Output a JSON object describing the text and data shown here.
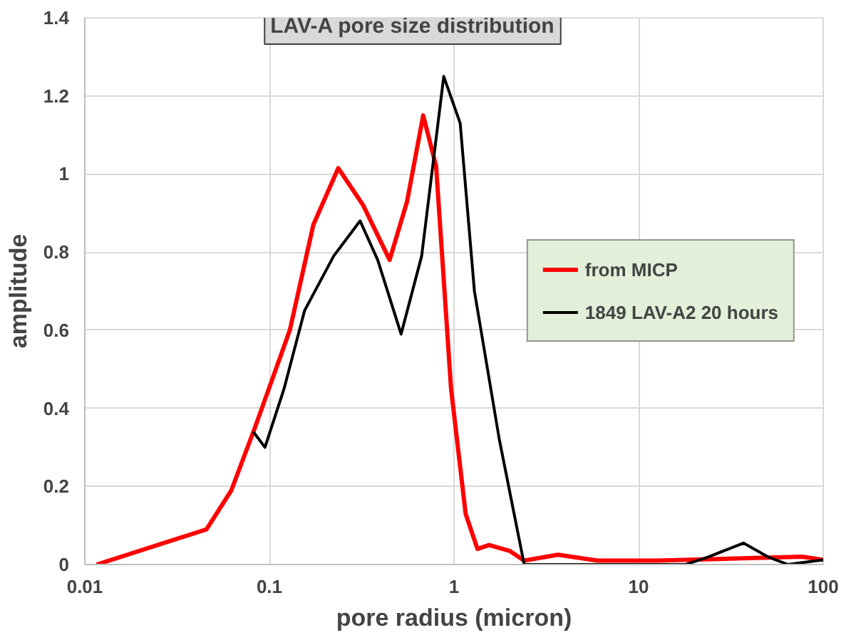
{
  "chart_data": {
    "type": "line",
    "title": "LAV-A pore size distribution",
    "xlabel": "pore radius (micron)",
    "ylabel": "amplitude",
    "log": "x",
    "xlim": [
      0.01,
      100
    ],
    "xticks": [
      0.01,
      0.1,
      1,
      10,
      100
    ],
    "ylim": [
      0,
      1.4
    ],
    "yticks": [
      0,
      0.2,
      0.4,
      0.6,
      0.8,
      1,
      1.2,
      1.4
    ],
    "grid": true,
    "legend": "right",
    "line_style": "solid",
    "marker": "none",
    "series": [
      {
        "name": "from MICP",
        "color": "#ff0000",
        "x": [
          0.0116,
          0.0456,
          0.0622,
          0.0834,
          0.129,
          0.173,
          0.236,
          0.322,
          0.448,
          0.557,
          0.681,
          0.8,
          0.964,
          1.156,
          1.34,
          1.55,
          2.0,
          2.4,
          3.66,
          6.0,
          12.4,
          31,
          77,
          100
        ],
        "values": [
          0,
          0.09,
          0.19,
          0.35,
          0.6,
          0.87,
          1.015,
          0.92,
          0.78,
          0.93,
          1.15,
          1.02,
          0.45,
          0.13,
          0.04,
          0.05,
          0.035,
          0.01,
          0.025,
          0.01,
          0.01,
          0.015,
          0.02,
          0.012
        ]
      },
      {
        "name": "1849 LAV-A2 20 hours",
        "color": "#000000",
        "x": [
          0.0818,
          0.0946,
          0.12,
          0.155,
          0.223,
          0.31,
          0.386,
          0.517,
          0.668,
          0.88,
          1.08,
          1.29,
          1.76,
          2.4,
          9.1,
          18,
          24,
          37,
          50,
          64.5,
          77,
          100
        ],
        "values": [
          0.34,
          0.3,
          0.45,
          0.65,
          0.79,
          0.88,
          0.78,
          0.59,
          0.79,
          1.25,
          1.13,
          0.7,
          0.32,
          0,
          0,
          0,
          0.02,
          0.055,
          0.02,
          0,
          0.005,
          0.012
        ]
      }
    ]
  }
}
